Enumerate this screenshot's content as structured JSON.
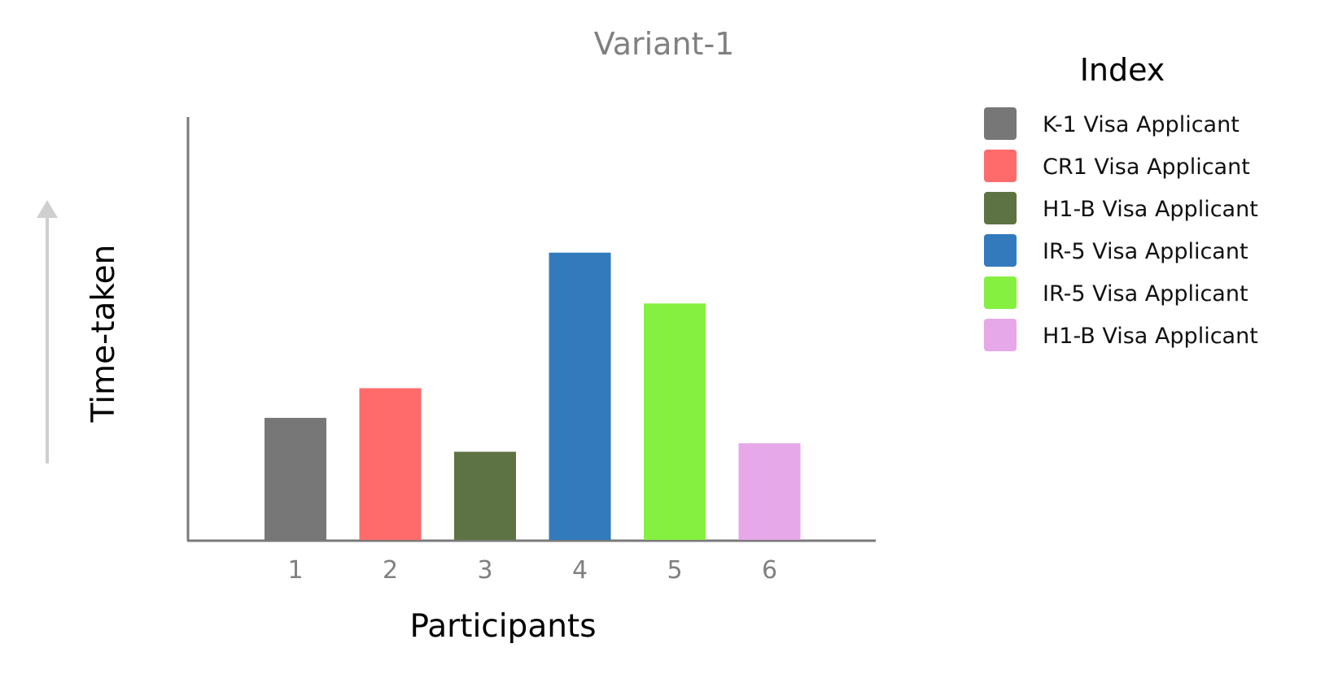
{
  "chart_data": {
    "type": "bar",
    "title": "Variant-1",
    "xlabel": "Participants",
    "ylabel": "Time-taken",
    "categories": [
      "1",
      "2",
      "3",
      "4",
      "5",
      "6"
    ],
    "values": [
      29,
      36,
      21,
      68,
      56,
      23
    ],
    "ylim": [
      0,
      100
    ],
    "grid": false,
    "legend_position": "right",
    "legend_title": "Index",
    "legend": [
      {
        "label": "K-1 Visa Applicant",
        "color": "#777777"
      },
      {
        "label": "CR1 Visa Applicant",
        "color": "#FF6B6B"
      },
      {
        "label": "H1-B Visa Applicant",
        "color": "#5E7343"
      },
      {
        "label": "IR-5 Visa Applicant",
        "color": "#337ABD"
      },
      {
        "label": "IR-5 Visa Applicant",
        "color": "#86F041"
      },
      {
        "label": "H1-B Visa Applicant",
        "color": "#E6A8E8"
      }
    ],
    "colors": [
      "#777777",
      "#FF6B6B",
      "#5E7343",
      "#337ABD",
      "#86F041",
      "#E6A8E8"
    ]
  }
}
